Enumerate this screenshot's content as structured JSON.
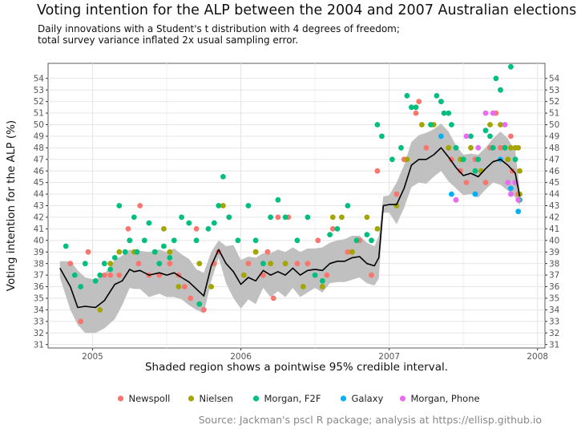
{
  "title": "Voting intention for the ALP between the 2004 and 2007 Australian elections",
  "subtitle_line1": "Daily innovations with a Student's t distribution with 4 degrees of freedom;",
  "subtitle_line2": "total survey variance inflated 2x usual sampling error.",
  "caption": "Source: Jackman's pscl R package; analysis at https://ellisp.github.io",
  "chart_data": {
    "type": "scatter",
    "xlabel": "Shaded region shows a pointwise 95% credible interval.",
    "ylabel": "Voting intention for the ALP (%)",
    "xlim": [
      2004.7,
      2008.05
    ],
    "ylim": [
      30.7,
      55.3
    ],
    "x_ticks": [
      2005,
      2006,
      2007,
      2008
    ],
    "y_ticks": [
      31,
      32,
      33,
      34,
      35,
      36,
      37,
      38,
      39,
      40,
      41,
      42,
      43,
      44,
      45,
      46,
      47,
      48,
      49,
      50,
      51,
      52,
      53,
      54
    ],
    "grid": true,
    "secondary_y_axis": true,
    "legend_position": "bottom",
    "series": [
      {
        "name": "Newspoll",
        "color": "#F8766D",
        "points": [
          [
            2004.85,
            38
          ],
          [
            2004.92,
            33
          ],
          [
            2004.97,
            39
          ],
          [
            2005.08,
            37
          ],
          [
            2005.12,
            37
          ],
          [
            2005.18,
            37
          ],
          [
            2005.24,
            41
          ],
          [
            2005.25,
            40
          ],
          [
            2005.31,
            38
          ],
          [
            2005.32,
            43
          ],
          [
            2005.38,
            37
          ],
          [
            2005.45,
            37
          ],
          [
            2005.52,
            38
          ],
          [
            2005.58,
            37
          ],
          [
            2005.62,
            36
          ],
          [
            2005.66,
            35
          ],
          [
            2005.7,
            41
          ],
          [
            2005.75,
            34
          ],
          [
            2005.82,
            38
          ],
          [
            2005.85,
            39
          ],
          [
            2005.92,
            42
          ],
          [
            2006.05,
            38
          ],
          [
            2006.1,
            39
          ],
          [
            2006.15,
            37
          ],
          [
            2006.18,
            39
          ],
          [
            2006.22,
            35
          ],
          [
            2006.25,
            42
          ],
          [
            2006.32,
            42
          ],
          [
            2006.38,
            38
          ],
          [
            2006.45,
            38
          ],
          [
            2006.52,
            40
          ],
          [
            2006.58,
            37
          ],
          [
            2006.62,
            41
          ],
          [
            2006.72,
            39
          ],
          [
            2006.8,
            40
          ],
          [
            2006.88,
            37
          ],
          [
            2006.92,
            46
          ],
          [
            2007.05,
            44
          ],
          [
            2007.1,
            47
          ],
          [
            2007.18,
            51
          ],
          [
            2007.2,
            52
          ],
          [
            2007.25,
            48
          ],
          [
            2007.35,
            52
          ],
          [
            2007.42,
            47
          ],
          [
            2007.48,
            46
          ],
          [
            2007.52,
            45
          ],
          [
            2007.58,
            47
          ],
          [
            2007.65,
            45
          ],
          [
            2007.68,
            48
          ],
          [
            2007.72,
            51
          ],
          [
            2007.75,
            48
          ],
          [
            2007.78,
            48
          ],
          [
            2007.8,
            47
          ],
          [
            2007.82,
            49
          ],
          [
            2007.83,
            46
          ],
          [
            2007.85,
            45
          ],
          [
            2007.87,
            44
          ]
        ]
      },
      {
        "name": "Nielsen",
        "color": "#A3A500",
        "points": [
          [
            2005.05,
            34
          ],
          [
            2005.12,
            38
          ],
          [
            2005.18,
            39
          ],
          [
            2005.28,
            39
          ],
          [
            2005.42,
            39
          ],
          [
            2005.48,
            41
          ],
          [
            2005.52,
            39
          ],
          [
            2005.58,
            36
          ],
          [
            2005.72,
            38
          ],
          [
            2005.8,
            36
          ],
          [
            2005.88,
            43
          ],
          [
            2006.02,
            37
          ],
          [
            2006.1,
            39
          ],
          [
            2006.2,
            38
          ],
          [
            2006.3,
            38
          ],
          [
            2006.42,
            36
          ],
          [
            2006.55,
            36
          ],
          [
            2006.62,
            42
          ],
          [
            2006.68,
            42
          ],
          [
            2006.75,
            39
          ],
          [
            2006.85,
            42
          ],
          [
            2006.92,
            41
          ],
          [
            2007.05,
            43
          ],
          [
            2007.12,
            47
          ],
          [
            2007.22,
            50
          ],
          [
            2007.3,
            50
          ],
          [
            2007.4,
            48
          ],
          [
            2007.48,
            47
          ],
          [
            2007.55,
            48
          ],
          [
            2007.62,
            46
          ],
          [
            2007.68,
            50
          ],
          [
            2007.75,
            50
          ],
          [
            2007.8,
            47
          ],
          [
            2007.82,
            48
          ],
          [
            2007.85,
            48
          ],
          [
            2007.87,
            48
          ],
          [
            2007.88,
            46
          ],
          [
            2007.88,
            44
          ]
        ]
      },
      {
        "name": "Morgan, F2F",
        "color": "#00BF7D",
        "points": [
          [
            2004.82,
            39.5
          ],
          [
            2004.88,
            37
          ],
          [
            2004.92,
            36
          ],
          [
            2004.95,
            38
          ],
          [
            2005.02,
            36.5
          ],
          [
            2005.05,
            37
          ],
          [
            2005.08,
            38
          ],
          [
            2005.12,
            37.5
          ],
          [
            2005.15,
            38.5
          ],
          [
            2005.18,
            43
          ],
          [
            2005.22,
            39
          ],
          [
            2005.25,
            40
          ],
          [
            2005.28,
            42
          ],
          [
            2005.3,
            39
          ],
          [
            2005.35,
            40
          ],
          [
            2005.38,
            41.5
          ],
          [
            2005.42,
            39
          ],
          [
            2005.45,
            38
          ],
          [
            2005.48,
            39.5
          ],
          [
            2005.52,
            38.5
          ],
          [
            2005.55,
            40
          ],
          [
            2005.6,
            42
          ],
          [
            2005.65,
            41.5
          ],
          [
            2005.7,
            40
          ],
          [
            2005.72,
            34.5
          ],
          [
            2005.78,
            41
          ],
          [
            2005.82,
            41.5
          ],
          [
            2005.85,
            43
          ],
          [
            2005.88,
            45.5
          ],
          [
            2005.92,
            42
          ],
          [
            2005.98,
            40
          ],
          [
            2006.05,
            43
          ],
          [
            2006.1,
            40
          ],
          [
            2006.15,
            38
          ],
          [
            2006.2,
            42
          ],
          [
            2006.25,
            43.5
          ],
          [
            2006.3,
            42
          ],
          [
            2006.38,
            40
          ],
          [
            2006.45,
            42
          ],
          [
            2006.5,
            37
          ],
          [
            2006.55,
            36.5
          ],
          [
            2006.6,
            40.5
          ],
          [
            2006.65,
            41
          ],
          [
            2006.72,
            43
          ],
          [
            2006.78,
            40
          ],
          [
            2006.85,
            40.5
          ],
          [
            2006.88,
            40
          ],
          [
            2006.92,
            50
          ],
          [
            2006.95,
            49
          ],
          [
            2007.02,
            47
          ],
          [
            2007.08,
            48
          ],
          [
            2007.12,
            52.5
          ],
          [
            2007.15,
            51.5
          ],
          [
            2007.18,
            51.5
          ],
          [
            2007.28,
            50
          ],
          [
            2007.32,
            52.5
          ],
          [
            2007.35,
            52
          ],
          [
            2007.37,
            51
          ],
          [
            2007.4,
            51
          ],
          [
            2007.42,
            50
          ],
          [
            2007.45,
            48
          ],
          [
            2007.5,
            47
          ],
          [
            2007.55,
            49
          ],
          [
            2007.58,
            46
          ],
          [
            2007.6,
            47
          ],
          [
            2007.65,
            49.5
          ],
          [
            2007.68,
            49
          ],
          [
            2007.7,
            48
          ],
          [
            2007.72,
            54
          ],
          [
            2007.75,
            53
          ],
          [
            2007.78,
            48
          ],
          [
            2007.82,
            55
          ],
          [
            2007.85,
            47
          ],
          [
            2007.88,
            43.5
          ]
        ]
      },
      {
        "name": "Galaxy",
        "color": "#00B0F6",
        "points": [
          [
            2007.35,
            49
          ],
          [
            2007.42,
            44
          ],
          [
            2007.58,
            44
          ],
          [
            2007.75,
            47
          ],
          [
            2007.82,
            44.5
          ],
          [
            2007.87,
            42.5
          ]
        ]
      },
      {
        "name": "Morgan, Phone",
        "color": "#E76BF3",
        "points": [
          [
            2007.45,
            43.5
          ],
          [
            2007.52,
            49
          ],
          [
            2007.6,
            48
          ],
          [
            2007.65,
            51
          ],
          [
            2007.7,
            51
          ],
          [
            2007.78,
            50
          ],
          [
            2007.8,
            45
          ],
          [
            2007.82,
            44
          ],
          [
            2007.85,
            45
          ],
          [
            2007.87,
            43.5
          ]
        ]
      }
    ],
    "trend": {
      "color": "#000000",
      "x": [
        2004.78,
        2004.85,
        2004.9,
        2004.95,
        2005.02,
        2005.08,
        2005.15,
        2005.2,
        2005.25,
        2005.28,
        2005.32,
        2005.38,
        2005.45,
        2005.5,
        2005.55,
        2005.6,
        2005.65,
        2005.7,
        2005.75,
        2005.8,
        2005.85,
        2005.9,
        2005.95,
        2006.0,
        2006.05,
        2006.1,
        2006.15,
        2006.2,
        2006.25,
        2006.3,
        2006.35,
        2006.4,
        2006.45,
        2006.5,
        2006.55,
        2006.6,
        2006.65,
        2006.7,
        2006.75,
        2006.8,
        2006.85,
        2006.9,
        2006.93,
        2006.96,
        2007.0,
        2007.05,
        2007.1,
        2007.15,
        2007.2,
        2007.25,
        2007.3,
        2007.35,
        2007.4,
        2007.45,
        2007.5,
        2007.55,
        2007.6,
        2007.65,
        2007.7,
        2007.75,
        2007.8,
        2007.85,
        2007.88
      ],
      "y": [
        37.6,
        36.0,
        34.2,
        34.3,
        34.2,
        34.8,
        36.2,
        36.5,
        37.5,
        37.3,
        37.4,
        37.0,
        37.2,
        37.0,
        37.2,
        36.8,
        36.4,
        35.8,
        35.2,
        37.8,
        39.2,
        38.0,
        37.3,
        36.2,
        36.8,
        36.5,
        37.4,
        37.0,
        37.3,
        37.0,
        37.6,
        37.0,
        37.4,
        37.5,
        37.4,
        38.0,
        38.2,
        38.2,
        38.5,
        38.6,
        38.0,
        37.8,
        38.5,
        43.0,
        43.1,
        43.1,
        44.5,
        46.5,
        47.0,
        47.0,
        47.4,
        48.0,
        47.2,
        46.3,
        45.6,
        45.8,
        45.5,
        46.2,
        46.8,
        47.0,
        46.5,
        45.8,
        43.8
      ]
    },
    "ci_band": {
      "color": "#bdbdbd",
      "x": [
        2004.78,
        2004.85,
        2004.9,
        2004.95,
        2005.02,
        2005.08,
        2005.15,
        2005.2,
        2005.25,
        2005.28,
        2005.32,
        2005.38,
        2005.45,
        2005.5,
        2005.55,
        2005.6,
        2005.65,
        2005.7,
        2005.75,
        2005.8,
        2005.85,
        2005.9,
        2005.95,
        2006.0,
        2006.05,
        2006.1,
        2006.15,
        2006.2,
        2006.25,
        2006.3,
        2006.35,
        2006.4,
        2006.45,
        2006.5,
        2006.55,
        2006.6,
        2006.65,
        2006.7,
        2006.75,
        2006.8,
        2006.85,
        2006.9,
        2006.93,
        2006.96,
        2007.0,
        2007.05,
        2007.1,
        2007.15,
        2007.2,
        2007.25,
        2007.3,
        2007.35,
        2007.4,
        2007.45,
        2007.5,
        2007.55,
        2007.6,
        2007.65,
        2007.7,
        2007.75,
        2007.8,
        2007.85,
        2007.88
      ],
      "upper": [
        38.2,
        38.2,
        37.4,
        36.8,
        36.6,
        37.1,
        38.3,
        38.7,
        39.2,
        39.0,
        39.1,
        39.0,
        39.2,
        39.0,
        39.3,
        38.8,
        38.4,
        37.5,
        37.2,
        39.0,
        40.0,
        39.5,
        39.6,
        38.3,
        38.6,
        38.5,
        38.9,
        38.9,
        39.2,
        39.0,
        39.4,
        39.0,
        39.3,
        39.3,
        39.4,
        39.8,
        40.0,
        40.1,
        40.4,
        40.4,
        39.8,
        39.5,
        40.4,
        43.8,
        43.9,
        45.0,
        46.5,
        48.5,
        49.1,
        49.3,
        49.6,
        50.1,
        49.4,
        48.2,
        47.4,
        47.5,
        47.4,
        48.0,
        48.8,
        49.4,
        48.8,
        47.7,
        44.5
      ],
      "lower": [
        36.8,
        34.0,
        32.7,
        32.0,
        32.0,
        32.4,
        33.2,
        34.4,
        35.9,
        35.8,
        35.8,
        35.1,
        35.4,
        35.1,
        35.1,
        34.9,
        34.4,
        34.0,
        33.7,
        36.5,
        38.5,
        36.3,
        35.0,
        34.1,
        34.9,
        34.5,
        35.9,
        35.1,
        35.6,
        35.1,
        35.9,
        35.1,
        35.5,
        35.9,
        35.5,
        36.3,
        36.4,
        36.4,
        36.6,
        36.8,
        36.3,
        36.1,
        36.7,
        42.4,
        42.4,
        41.4,
        42.8,
        44.6,
        45.0,
        44.9,
        45.5,
        46.0,
        45.1,
        44.5,
        43.9,
        44.0,
        43.7,
        44.4,
        45.0,
        44.8,
        44.3,
        43.7,
        43.0
      ]
    }
  }
}
